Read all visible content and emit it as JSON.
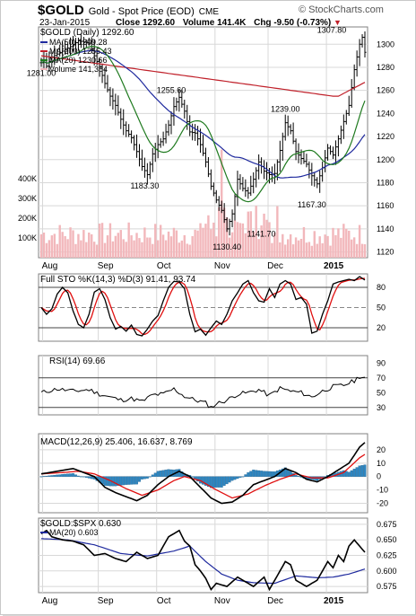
{
  "header": {
    "symbol": "$GOLD",
    "name": "Gold - Spot Price (EOD)",
    "exchange": "CME",
    "brand": "© StockCharts.com",
    "date": "23-Jan-2015",
    "close_label": "Close",
    "close": "1292.60",
    "volume_label": "Volume",
    "volume": "141.4K",
    "chg_label": "Chg",
    "chg": "-9.50 (-0.73%)"
  },
  "colors": {
    "price": "#000000",
    "ma50": "#1f2a9e",
    "ma200": "#c0202a",
    "ma20": "#1f7a1f",
    "volume": "#f2b7bb",
    "sto_k": "#000000",
    "sto_d": "#e01010",
    "macd": "#000000",
    "signal": "#e01010",
    "histogram": "#2e86c1",
    "ratio_ma": "#1f2a9e"
  },
  "chart_data": [
    {
      "type": "ohlc",
      "title": "$GOLD (Daily) 1292.60",
      "legend": [
        {
          "label": "MA(50) 1209.28",
          "color": "#1f2a9e"
        },
        {
          "label": "MA(200) 1255.43",
          "color": "#c0202a"
        },
        {
          "label": "MA(20) 1230.66",
          "color": "#1f7a1f"
        },
        {
          "label": "Volume 141,354",
          "color": "#f2b7bb"
        }
      ],
      "x_labels": [
        {
          "label": "Aug",
          "x": 0.5
        },
        {
          "label": "Sep",
          "x": 21.5
        },
        {
          "label": "Oct",
          "x": 43.5
        },
        {
          "label": "Nov",
          "x": 65.5
        },
        {
          "label": "Dec",
          "x": 85.5
        },
        {
          "label": "2015",
          "x": 107.5
        }
      ],
      "n": 123,
      "ylim": [
        1115,
        1315
      ],
      "y_ticks": [
        1120,
        1140,
        1160,
        1180,
        1200,
        1220,
        1240,
        1260,
        1280,
        1300
      ],
      "volume_ticks": [
        {
          "label": "100K",
          "v": 100000
        },
        {
          "label": "200K",
          "v": 200000
        },
        {
          "label": "300K",
          "v": 300000
        },
        {
          "label": "400K",
          "v": 400000
        }
      ],
      "volume_max": 500000,
      "anchors": [
        [
          0,
          1284
        ],
        [
          1,
          1286
        ],
        [
          2,
          1281
        ],
        [
          4,
          1289
        ],
        [
          8,
          1294
        ],
        [
          11,
          1298
        ],
        [
          14,
          1303
        ],
        [
          18,
          1301
        ],
        [
          20,
          1290
        ],
        [
          22,
          1280
        ],
        [
          24,
          1266
        ],
        [
          26,
          1255
        ],
        [
          28,
          1247
        ],
        [
          30,
          1235
        ],
        [
          32,
          1225
        ],
        [
          34,
          1219
        ],
        [
          36,
          1207
        ],
        [
          38,
          1194
        ],
        [
          40,
          1187
        ],
        [
          42,
          1205
        ],
        [
          44,
          1213
        ],
        [
          46,
          1218
        ],
        [
          48,
          1230
        ],
        [
          50,
          1246
        ],
        [
          52,
          1254
        ],
        [
          54,
          1242
        ],
        [
          56,
          1224
        ],
        [
          58,
          1223
        ],
        [
          60,
          1213
        ],
        [
          62,
          1198
        ],
        [
          64,
          1177
        ],
        [
          66,
          1165
        ],
        [
          68,
          1156
        ],
        [
          70,
          1140
        ],
        [
          72,
          1153
        ],
        [
          74,
          1183
        ],
        [
          76,
          1175
        ],
        [
          78,
          1171
        ],
        [
          80,
          1183
        ],
        [
          82,
          1198
        ],
        [
          84,
          1190
        ],
        [
          86,
          1187
        ],
        [
          88,
          1188
        ],
        [
          90,
          1208
        ],
        [
          92,
          1232
        ],
        [
          94,
          1225
        ],
        [
          96,
          1207
        ],
        [
          98,
          1201
        ],
        [
          100,
          1196
        ],
        [
          102,
          1186
        ],
        [
          104,
          1179
        ],
        [
          106,
          1193
        ],
        [
          108,
          1210
        ],
        [
          110,
          1204
        ],
        [
          112,
          1218
        ],
        [
          114,
          1233
        ],
        [
          116,
          1247
        ],
        [
          118,
          1278
        ],
        [
          120,
          1300
        ],
        [
          121,
          1306
        ],
        [
          122,
          1293
        ]
      ],
      "annotations": [
        {
          "label": "1281.00",
          "i": 0,
          "v": 1281
        },
        {
          "label": "1255.60",
          "i": 49,
          "v": 1255.6
        },
        {
          "label": "1183.30",
          "i": 39,
          "v": 1183.3
        },
        {
          "label": "1130.40",
          "i": 70,
          "v": 1130.4
        },
        {
          "label": "1239.00",
          "i": 92,
          "v": 1239
        },
        {
          "label": "1141.70",
          "i": 83,
          "v": 1141.7
        },
        {
          "label": "1167.30",
          "i": 102,
          "v": 1167.3
        },
        {
          "label": "1307.80",
          "i": 120,
          "v": 1307.8
        }
      ]
    },
    {
      "type": "line",
      "title": "Full STO %K(14,3) %D(3) 91.41, 93.74",
      "ylim": [
        0,
        100
      ],
      "y_ticks": [
        20,
        50,
        80
      ],
      "ref_lines": [
        20,
        50,
        80
      ],
      "anchors": [
        [
          0,
          50
        ],
        [
          2,
          40
        ],
        [
          4,
          48
        ],
        [
          6,
          70
        ],
        [
          8,
          80
        ],
        [
          10,
          72
        ],
        [
          12,
          45
        ],
        [
          14,
          25
        ],
        [
          16,
          20
        ],
        [
          18,
          40
        ],
        [
          20,
          73
        ],
        [
          22,
          78
        ],
        [
          24,
          62
        ],
        [
          26,
          35
        ],
        [
          28,
          18
        ],
        [
          30,
          22
        ],
        [
          32,
          15
        ],
        [
          34,
          24
        ],
        [
          36,
          10
        ],
        [
          38,
          8
        ],
        [
          40,
          18
        ],
        [
          42,
          30
        ],
        [
          44,
          38
        ],
        [
          46,
          60
        ],
        [
          48,
          80
        ],
        [
          50,
          89
        ],
        [
          52,
          88
        ],
        [
          54,
          78
        ],
        [
          56,
          40
        ],
        [
          58,
          14
        ],
        [
          60,
          18
        ],
        [
          62,
          9
        ],
        [
          64,
          20
        ],
        [
          66,
          30
        ],
        [
          68,
          25
        ],
        [
          70,
          40
        ],
        [
          72,
          60
        ],
        [
          74,
          72
        ],
        [
          76,
          85
        ],
        [
          78,
          90
        ],
        [
          80,
          72
        ],
        [
          82,
          60
        ],
        [
          84,
          58
        ],
        [
          86,
          78
        ],
        [
          88,
          65
        ],
        [
          90,
          85
        ],
        [
          92,
          90
        ],
        [
          94,
          85
        ],
        [
          96,
          62
        ],
        [
          98,
          65
        ],
        [
          100,
          55
        ],
        [
          102,
          12
        ],
        [
          104,
          15
        ],
        [
          106,
          40
        ],
        [
          108,
          60
        ],
        [
          110,
          85
        ],
        [
          112,
          88
        ],
        [
          114,
          90
        ],
        [
          116,
          92
        ],
        [
          118,
          90
        ],
        [
          120,
          96
        ],
        [
          122,
          91
        ]
      ]
    },
    {
      "type": "line",
      "title": "RSI(14) 69.66",
      "ylim": [
        20,
        100
      ],
      "y_ticks": [
        30,
        50,
        70,
        90
      ],
      "ref_lines": [
        30,
        70
      ],
      "anchors": [
        [
          0,
          50
        ],
        [
          6,
          55
        ],
        [
          12,
          52
        ],
        [
          18,
          54
        ],
        [
          22,
          48
        ],
        [
          26,
          44
        ],
        [
          30,
          40
        ],
        [
          34,
          42
        ],
        [
          38,
          38
        ],
        [
          42,
          47
        ],
        [
          46,
          48
        ],
        [
          50,
          55
        ],
        [
          54,
          45
        ],
        [
          58,
          40
        ],
        [
          62,
          36
        ],
        [
          64,
          30
        ],
        [
          66,
          35
        ],
        [
          70,
          40
        ],
        [
          74,
          48
        ],
        [
          78,
          50
        ],
        [
          82,
          54
        ],
        [
          86,
          46
        ],
        [
          90,
          56
        ],
        [
          94,
          52
        ],
        [
          98,
          50
        ],
        [
          102,
          44
        ],
        [
          106,
          52
        ],
        [
          110,
          58
        ],
        [
          114,
          60
        ],
        [
          118,
          66
        ],
        [
          120,
          72
        ],
        [
          122,
          70
        ]
      ]
    },
    {
      "type": "line",
      "title": "MACD(12,26,9) 25.406, 16.637, 8.769",
      "ylim": [
        -27,
        32
      ],
      "y_ticks": [
        -20,
        -10,
        0,
        10,
        20
      ],
      "anchors": [
        [
          0,
          2
        ],
        [
          6,
          4
        ],
        [
          12,
          6
        ],
        [
          16,
          3
        ],
        [
          20,
          0
        ],
        [
          24,
          -8
        ],
        [
          28,
          -12
        ],
        [
          32,
          -15
        ],
        [
          36,
          -18
        ],
        [
          40,
          -14
        ],
        [
          44,
          -6
        ],
        [
          48,
          0
        ],
        [
          52,
          4
        ],
        [
          56,
          0
        ],
        [
          60,
          -8
        ],
        [
          64,
          -16
        ],
        [
          68,
          -20
        ],
        [
          72,
          -19
        ],
        [
          76,
          -14
        ],
        [
          80,
          -6
        ],
        [
          84,
          -3
        ],
        [
          88,
          0
        ],
        [
          92,
          6
        ],
        [
          96,
          3
        ],
        [
          100,
          -2
        ],
        [
          104,
          -4
        ],
        [
          108,
          0
        ],
        [
          112,
          5
        ],
        [
          116,
          10
        ],
        [
          120,
          22
        ],
        [
          122,
          25.4
        ]
      ],
      "signal_anchors": [
        [
          0,
          2
        ],
        [
          8,
          3
        ],
        [
          14,
          4
        ],
        [
          20,
          2
        ],
        [
          26,
          -3
        ],
        [
          32,
          -9
        ],
        [
          38,
          -14
        ],
        [
          44,
          -10
        ],
        [
          50,
          -3
        ],
        [
          54,
          0
        ],
        [
          60,
          -3
        ],
        [
          66,
          -10
        ],
        [
          72,
          -16
        ],
        [
          78,
          -13
        ],
        [
          84,
          -7
        ],
        [
          90,
          -2
        ],
        [
          96,
          2
        ],
        [
          102,
          -1
        ],
        [
          108,
          -1
        ],
        [
          114,
          3
        ],
        [
          120,
          14
        ],
        [
          122,
          16.6
        ]
      ]
    },
    {
      "type": "line",
      "title": "$GOLD:$SPX 0.630",
      "legend": [
        {
          "label": "MA(20) 0.603",
          "color": "#1f2a9e"
        }
      ],
      "ylim": [
        0.565,
        0.685
      ],
      "y_ticks": [
        0.575,
        0.6,
        0.625,
        0.65,
        0.675
      ],
      "anchors": [
        [
          0,
          0.66
        ],
        [
          2,
          0.665
        ],
        [
          4,
          0.655
        ],
        [
          8,
          0.65
        ],
        [
          12,
          0.648
        ],
        [
          16,
          0.642
        ],
        [
          20,
          0.625
        ],
        [
          24,
          0.628
        ],
        [
          28,
          0.62
        ],
        [
          32,
          0.615
        ],
        [
          36,
          0.63
        ],
        [
          40,
          0.62
        ],
        [
          44,
          0.625
        ],
        [
          48,
          0.655
        ],
        [
          52,
          0.665
        ],
        [
          54,
          0.648
        ],
        [
          56,
          0.64
        ],
        [
          58,
          0.61
        ],
        [
          60,
          0.6
        ],
        [
          62,
          0.588
        ],
        [
          64,
          0.57
        ],
        [
          66,
          0.58
        ],
        [
          70,
          0.575
        ],
        [
          74,
          0.59
        ],
        [
          78,
          0.58
        ],
        [
          80,
          0.575
        ],
        [
          84,
          0.59
        ],
        [
          86,
          0.57
        ],
        [
          88,
          0.585
        ],
        [
          90,
          0.6
        ],
        [
          92,
          0.615
        ],
        [
          94,
          0.61
        ],
        [
          96,
          0.585
        ],
        [
          100,
          0.575
        ],
        [
          102,
          0.58
        ],
        [
          104,
          0.585
        ],
        [
          106,
          0.6
        ],
        [
          108,
          0.615
        ],
        [
          110,
          0.605
        ],
        [
          112,
          0.625
        ],
        [
          114,
          0.615
        ],
        [
          116,
          0.64
        ],
        [
          118,
          0.65
        ],
        [
          120,
          0.64
        ],
        [
          122,
          0.63
        ]
      ],
      "ma_anchors": [
        [
          0,
          0.652
        ],
        [
          10,
          0.65
        ],
        [
          20,
          0.642
        ],
        [
          30,
          0.628
        ],
        [
          40,
          0.624
        ],
        [
          50,
          0.632
        ],
        [
          56,
          0.64
        ],
        [
          62,
          0.615
        ],
        [
          68,
          0.595
        ],
        [
          74,
          0.585
        ],
        [
          80,
          0.581
        ],
        [
          88,
          0.58
        ],
        [
          96,
          0.592
        ],
        [
          104,
          0.589
        ],
        [
          110,
          0.59
        ],
        [
          116,
          0.595
        ],
        [
          122,
          0.603
        ]
      ]
    }
  ]
}
